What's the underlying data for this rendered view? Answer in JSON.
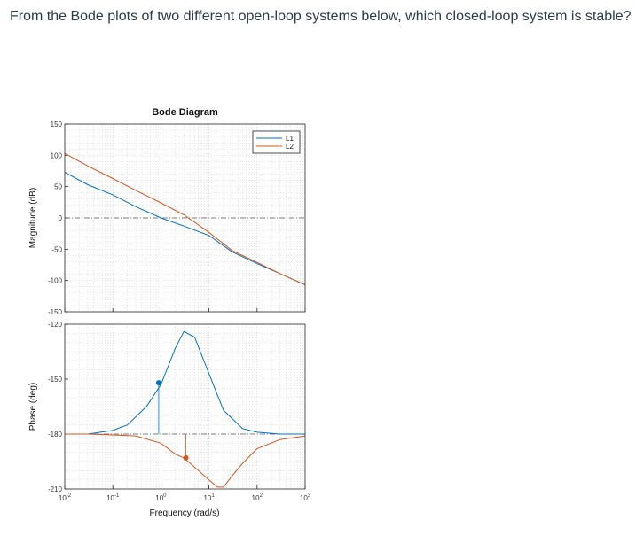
{
  "question": "From the Bode plots of two different open-loop systems below, which closed-loop system is stable?",
  "colors": {
    "L1": "#0072BD",
    "L2": "#D95319",
    "grid": "#cfcfcf",
    "axis": "#262626",
    "ref": "#555555"
  },
  "chart_data": {
    "type": "line",
    "title": "Bode Diagram",
    "xlabel": "Frequency (rad/s)",
    "x_scale": "log",
    "xlim": [
      0.01,
      1000
    ],
    "x_ticks": [
      {
        "v": 0.01,
        "base": "10",
        "exp": "-2"
      },
      {
        "v": 0.1,
        "base": "10",
        "exp": "-1"
      },
      {
        "v": 1,
        "base": "10",
        "exp": "0"
      },
      {
        "v": 10,
        "base": "10",
        "exp": "1"
      },
      {
        "v": 100,
        "base": "10",
        "exp": "2"
      },
      {
        "v": 1000,
        "base": "10",
        "exp": "3"
      }
    ],
    "legend": {
      "position": "top-right",
      "entries": [
        "L1",
        "L2"
      ]
    },
    "grid": true,
    "magnitude": {
      "ylabel": "Magnitude (dB)",
      "ylim": [
        -150,
        150
      ],
      "y_ticks": [
        "150",
        "100",
        "50",
        "0",
        "-50",
        "-100",
        "-150"
      ],
      "y_tick_values": [
        150,
        100,
        50,
        0,
        -50,
        -100,
        -150
      ],
      "series": [
        {
          "name": "L1",
          "x": [
            0.01,
            0.03,
            0.1,
            0.3,
            1,
            3,
            10,
            30,
            100,
            300,
            1000
          ],
          "y": [
            73,
            53,
            37,
            18,
            0,
            -13,
            -28,
            -54,
            -73,
            -89,
            -107
          ]
        },
        {
          "name": "L2",
          "x": [
            0.01,
            0.03,
            0.1,
            0.3,
            1,
            3,
            10,
            30,
            100,
            300,
            1000
          ],
          "y": [
            103,
            83,
            63,
            44,
            24,
            5,
            -23,
            -52,
            -71,
            -89,
            -107
          ]
        }
      ]
    },
    "phase": {
      "ylabel": "Phase (deg)",
      "ylim": [
        -210,
        -120
      ],
      "y_ticks": [
        "-120",
        "-150",
        "-180",
        "-210"
      ],
      "y_tick_values": [
        -120,
        -150,
        -180,
        -210
      ],
      "series": [
        {
          "name": "L1",
          "x": [
            0.01,
            0.03,
            0.1,
            0.2,
            0.5,
            1,
            2,
            3,
            5,
            10,
            20,
            50,
            100,
            300,
            1000
          ],
          "y": [
            -180,
            -180,
            -178,
            -175,
            -165,
            -153,
            -133,
            -124,
            -127,
            -147,
            -167,
            -177,
            -179,
            -180,
            -180
          ]
        },
        {
          "name": "L2",
          "x": [
            0.01,
            0.03,
            0.1,
            0.3,
            1,
            2,
            3,
            5,
            10,
            15,
            20,
            30,
            50,
            100,
            300,
            1000
          ],
          "y": [
            -180,
            -180,
            -180.5,
            -181,
            -185,
            -191,
            -193,
            -198,
            -205,
            -209,
            -209,
            -203,
            -196,
            -188,
            -183,
            -181
          ]
        }
      ]
    },
    "margin_markers": [
      {
        "series": "L1",
        "x": 0.9,
        "phase": -152
      },
      {
        "series": "L2",
        "x": 3.3,
        "phase": -193
      }
    ]
  }
}
